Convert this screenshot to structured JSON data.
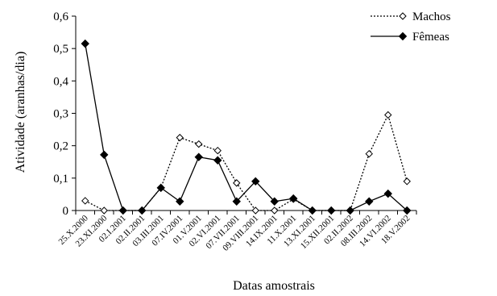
{
  "chart_data": {
    "type": "line",
    "title": "",
    "xlabel": "Datas amostrais",
    "ylabel": "Atividade (aranhas/dia)",
    "ylim": [
      0,
      0.6
    ],
    "yticks": [
      "0",
      "0,1",
      "0,2",
      "0,3",
      "0,4",
      "0,5",
      "0,6"
    ],
    "ytick_values": [
      0,
      0.1,
      0.2,
      0.3,
      0.4,
      0.5,
      0.6
    ],
    "grid": false,
    "legend_position": "top-right",
    "categories": [
      "25.X.2000",
      "23.XI.2000",
      "02.I.2001",
      "02.II.2001",
      "03.III.2001",
      "07.IV.2001",
      "01.V.2001",
      "02.VI.2001",
      "07.VII.2001",
      "09.VIII.2001",
      "14.IX.2001",
      "11.X.2001",
      "13.XI.2001",
      "15.XII.2001",
      "02.II.2002",
      "08.III.2002",
      "14.VI.2002",
      "18.V.2002"
    ],
    "series": [
      {
        "name": "Machos",
        "style": "dotted",
        "marker": "open-diamond",
        "color": "#000000",
        "values": [
          0.03,
          0.0,
          0.0,
          0.0,
          0.07,
          0.225,
          0.205,
          0.185,
          0.085,
          0.0,
          0.0,
          0.035,
          0.0,
          0.0,
          0.0,
          0.175,
          0.295,
          0.09
        ]
      },
      {
        "name": "Fêmeas",
        "style": "solid",
        "marker": "filled-diamond",
        "color": "#000000",
        "values": [
          0.515,
          0.172,
          0.0,
          0.0,
          0.07,
          0.028,
          0.165,
          0.155,
          0.028,
          0.09,
          0.028,
          0.037,
          0.0,
          0.0,
          0.0,
          0.028,
          0.052,
          0.0
        ]
      }
    ]
  }
}
